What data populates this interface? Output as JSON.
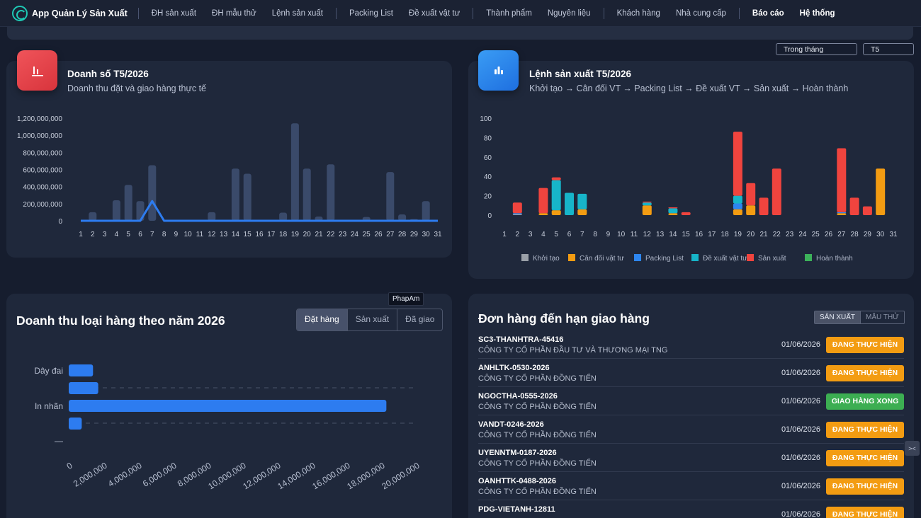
{
  "app": {
    "title": "App Quản Lý Sản Xuất"
  },
  "nav": [
    {
      "label": "ĐH sản xuất",
      "bold": false,
      "sep_before": false
    },
    {
      "label": "ĐH mẫu thử",
      "bold": false,
      "sep_before": false
    },
    {
      "label": "Lệnh sản xuất",
      "bold": false,
      "sep_before": false
    },
    {
      "label": "Packing List",
      "bold": false,
      "sep_before": true
    },
    {
      "label": "Đề xuất vật tư",
      "bold": false,
      "sep_before": false
    },
    {
      "label": "Thành phẩm",
      "bold": false,
      "sep_before": true
    },
    {
      "label": "Nguyên liệu",
      "bold": false,
      "sep_before": false
    },
    {
      "label": "Khách hàng",
      "bold": false,
      "sep_before": true
    },
    {
      "label": "Nhà cung cấp",
      "bold": false,
      "sep_before": false
    },
    {
      "label": "Báo cáo",
      "bold": true,
      "sep_before": true
    },
    {
      "label": "Hệ thống",
      "bold": true,
      "sep_before": false
    }
  ],
  "filters": {
    "period": "Trong tháng",
    "month": "T5"
  },
  "revenue_card": {
    "title": "Doanh số T5/2026",
    "subtitle": "Doanh thu đặt và giao hàng thực tế"
  },
  "production_card": {
    "title": "Lệnh sản xuất T5/2026",
    "subtitle": "Khởi tạo → Cân đối VT → Packing List → Đề xuất VT → Sản xuất → Hoàn thành"
  },
  "category_card": {
    "title": "Doanh thu loại hàng theo năm 2026",
    "tabs": [
      "Đặt hàng",
      "Sản xuất",
      "Đã giao"
    ],
    "active_tab": 0
  },
  "due_card": {
    "title": "Đơn hàng đến hạn giao hàng",
    "tabs": [
      "SẢN XUẤT",
      "MẪU THỬ"
    ],
    "active_tab": 0
  },
  "tooltip": "PhapAm",
  "side_tab": "><",
  "orders": [
    {
      "code": "SC3-THANHTRA-45416",
      "customer": "CÔNG TY CỔ PHẦN ĐẦU TƯ VÀ THƯƠNG MẠI TNG",
      "date": "01/06/2026",
      "status": "ĐANG THỰC HIỆN",
      "color": "orange"
    },
    {
      "code": "ANHLTK-0530-2026",
      "customer": "CÔNG TY CỔ PHẦN ĐỒNG TIẾN",
      "date": "01/06/2026",
      "status": "ĐANG THỰC HIỆN",
      "color": "orange"
    },
    {
      "code": "NGOCTHA-0555-2026",
      "customer": "CÔNG TY CỔ PHẦN ĐỒNG TIẾN",
      "date": "01/06/2026",
      "status": "GIAO HÀNG XONG",
      "color": "green"
    },
    {
      "code": "VANDT-0246-2026",
      "customer": "CÔNG TY CỔ PHẦN ĐỒNG TIẾN",
      "date": "01/06/2026",
      "status": "ĐANG THỰC HIỆN",
      "color": "orange"
    },
    {
      "code": "UYENNTM-0187-2026",
      "customer": "CÔNG TY CỔ PHẦN ĐỒNG TIẾN",
      "date": "01/06/2026",
      "status": "ĐANG THỰC HIỆN",
      "color": "orange"
    },
    {
      "code": "OANHTTK-0488-2026",
      "customer": "CÔNG TY CỔ PHẦN ĐỒNG TIẾN",
      "date": "01/06/2026",
      "status": "ĐANG THỰC HIỆN",
      "color": "orange"
    },
    {
      "code": "PDG-VIETANH-12811",
      "customer": "",
      "date": "01/06/2026",
      "status": "ĐANG THỰC HIỆN",
      "color": "orange"
    }
  ],
  "chart_data": [
    {
      "type": "bar",
      "categories": [
        "1",
        "2",
        "3",
        "4",
        "5",
        "6",
        "7",
        "8",
        "9",
        "10",
        "11",
        "12",
        "13",
        "14",
        "15",
        "16",
        "17",
        "18",
        "19",
        "20",
        "21",
        "22",
        "23",
        "24",
        "25",
        "26",
        "27",
        "28",
        "29",
        "30",
        "31"
      ],
      "series": [
        {
          "values": [
            0,
            100000000,
            0,
            240000000,
            420000000,
            230000000,
            650000000,
            0,
            0,
            0,
            0,
            100000000,
            0,
            610000000,
            550000000,
            0,
            0,
            95000000,
            1140000000,
            610000000,
            50000000,
            660000000,
            0,
            0,
            45000000,
            0,
            570000000,
            75000000,
            20000000,
            230000000,
            0
          ],
          "color": "#3a4a6a"
        },
        {
          "values": [
            0,
            0,
            0,
            0,
            0,
            0,
            230000000,
            0,
            0,
            0,
            0,
            0,
            0,
            0,
            0,
            0,
            0,
            0,
            0,
            0,
            0,
            0,
            0,
            0,
            0,
            0,
            0,
            0,
            0,
            0,
            0
          ],
          "color": "#2d7cf0"
        }
      ],
      "yticks": [
        "0",
        "200,000,000",
        "400,000,000",
        "600,000,000",
        "800,000,000",
        "1,000,000,000",
        "1,200,000,000"
      ],
      "ylim": [
        0,
        1200000000
      ]
    },
    {
      "type": "bar",
      "stacked": true,
      "categories": [
        "1",
        "2",
        "3",
        "4",
        "5",
        "6",
        "7",
        "8",
        "9",
        "10",
        "11",
        "12",
        "13",
        "14",
        "15",
        "16",
        "17",
        "18",
        "19",
        "20",
        "21",
        "22",
        "23",
        "24",
        "25",
        "26",
        "27",
        "28",
        "29",
        "30",
        "31"
      ],
      "series": [
        {
          "name": "Khởi tạo",
          "color": "#9aa0a8",
          "values": [
            0,
            1,
            0,
            0,
            0,
            0,
            0,
            0,
            0,
            0,
            0,
            0,
            0,
            0,
            0,
            0,
            0,
            0,
            0,
            0,
            0,
            0,
            0,
            0,
            0,
            0,
            0,
            0,
            0,
            0,
            0
          ]
        },
        {
          "name": "Cân đối vật tư",
          "color": "#f39c12",
          "values": [
            0,
            0,
            0,
            2,
            5,
            0,
            6,
            0,
            0,
            0,
            0,
            10,
            0,
            2,
            0,
            0,
            0,
            0,
            6,
            10,
            0,
            0,
            0,
            0,
            0,
            0,
            2,
            0,
            0,
            48,
            0
          ]
        },
        {
          "name": "Packing List",
          "color": "#2d86f0",
          "values": [
            0,
            1,
            0,
            0,
            0,
            0,
            0,
            0,
            0,
            0,
            0,
            0,
            0,
            0,
            0,
            0,
            0,
            0,
            6,
            0,
            0,
            0,
            0,
            0,
            0,
            0,
            1,
            0,
            0,
            0,
            0
          ]
        },
        {
          "name": "Đề xuất vật tư",
          "color": "#17b5c9",
          "values": [
            0,
            0,
            0,
            0,
            31,
            23,
            16,
            0,
            0,
            0,
            0,
            3,
            0,
            5,
            0,
            0,
            0,
            0,
            8,
            0,
            0,
            0,
            0,
            0,
            0,
            0,
            0,
            0,
            0,
            0,
            0
          ]
        },
        {
          "name": "Sản xuất",
          "color": "#f0443e",
          "values": [
            0,
            11,
            0,
            26,
            3,
            0,
            0,
            0,
            0,
            0,
            0,
            1,
            0,
            1,
            3,
            0,
            0,
            0,
            66,
            23,
            18,
            48,
            0,
            0,
            0,
            0,
            66,
            18,
            9,
            0,
            0
          ]
        },
        {
          "name": "Hoàn thành",
          "color": "#3cb25a",
          "values": [
            0,
            0,
            0,
            0,
            0,
            0,
            0,
            0,
            0,
            0,
            0,
            0,
            0,
            0,
            0,
            0,
            0,
            0,
            0,
            0,
            0,
            0,
            0,
            0,
            0,
            0,
            0,
            0,
            0,
            0,
            0
          ]
        }
      ],
      "yticks": [
        "0",
        "20",
        "40",
        "60",
        "80",
        "100"
      ],
      "ylim": [
        0,
        100
      ]
    },
    {
      "type": "bar",
      "orientation": "horizontal",
      "categories": [
        "Dây đai",
        "",
        "In nhãn",
        "",
        "—"
      ],
      "values": [
        1400000,
        1700000,
        18300000,
        750000,
        0
      ],
      "xticks": [
        "0",
        "2,000,000",
        "4,000,000",
        "6,000,000",
        "8,000,000",
        "10,000,000",
        "12,000,000",
        "14,000,000",
        "16,000,000",
        "18,000,000",
        "20,000,000"
      ],
      "xlim": [
        0,
        20000000
      ],
      "color": "#2d7cf0"
    }
  ]
}
